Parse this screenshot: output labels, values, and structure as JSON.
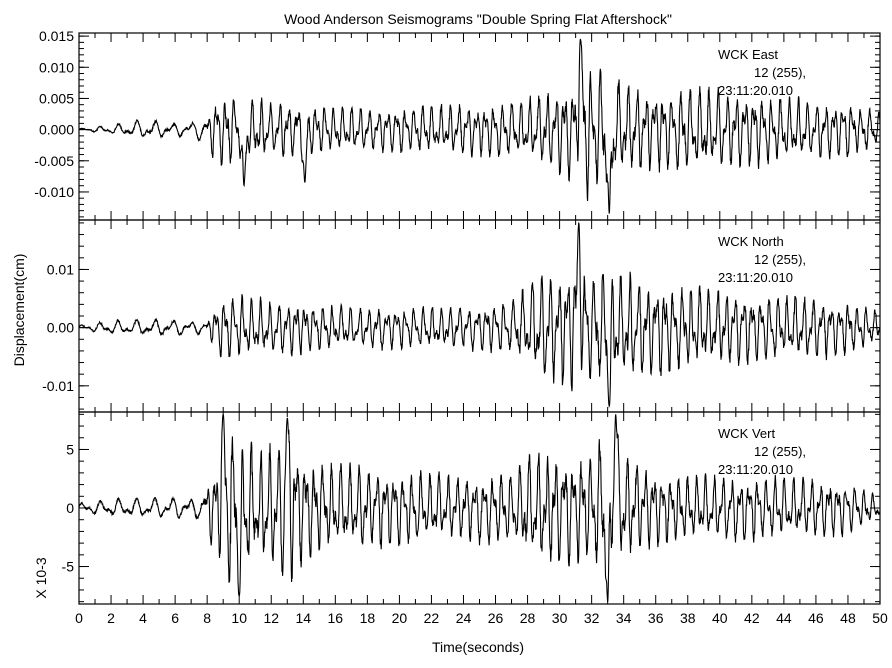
{
  "chart_data": {
    "type": "line",
    "title": "Wood Anderson Seismograms \"Double Spring Flat Aftershock\"",
    "xlabel": "Time(seconds)",
    "ylabel": "Displacement(cm)",
    "xlim": [
      0,
      50
    ],
    "x_ticks": [
      "0",
      "2",
      "4",
      "6",
      "8",
      "10",
      "12",
      "14",
      "16",
      "18",
      "20",
      "22",
      "24",
      "26",
      "28",
      "30",
      "32",
      "34",
      "36",
      "38",
      "40",
      "42",
      "44",
      "46",
      "48",
      "50"
    ],
    "grid": false,
    "panels": [
      {
        "name": "east",
        "ylim": [
          -0.0145,
          0.0155
        ],
        "y_ticks": [
          0.015,
          0.01,
          0.005,
          0.0,
          -0.005,
          -0.01
        ],
        "y_tick_labels": [
          "0.015",
          "0.010",
          "0.005",
          "0.000",
          "-0.005",
          "-0.010"
        ],
        "annotation": [
          "WCK   East",
          "12 (255),",
          "23:11:20.010"
        ],
        "envelope": {
          "t": [
            0,
            2,
            3,
            4,
            5,
            6,
            7,
            8,
            8.5,
            9,
            10,
            12,
            14,
            16,
            20,
            24,
            27,
            29,
            30,
            31,
            31.5,
            32,
            33,
            34,
            36,
            38,
            40,
            42,
            44,
            46,
            48,
            50
          ],
          "amp": [
            0.0002,
            0.0008,
            0.0012,
            0.0018,
            0.0015,
            0.0012,
            0.0015,
            0.0022,
            0.006,
            0.0065,
            0.006,
            0.005,
            0.005,
            0.004,
            0.004,
            0.0045,
            0.005,
            0.006,
            0.008,
            0.009,
            0.015,
            0.0105,
            0.011,
            0.008,
            0.007,
            0.0075,
            0.007,
            0.0065,
            0.006,
            0.005,
            0.005,
            0.003
          ]
        },
        "peaks": [
          {
            "t": 31.3,
            "v": 0.0145
          },
          {
            "t": 33.1,
            "v": -0.0135
          },
          {
            "t": 10.3,
            "v": -0.009
          },
          {
            "t": 14.1,
            "v": -0.0085
          }
        ]
      },
      {
        "name": "north",
        "ylim": [
          -0.0145,
          0.0185
        ],
        "y_ticks": [
          0.01,
          0.0,
          -0.01
        ],
        "y_tick_labels": [
          "0.01",
          "0.00",
          "-0.01"
        ],
        "annotation": [
          "WCK   North",
          "12 (255),",
          "23:11:20.010"
        ],
        "envelope": {
          "t": [
            0,
            2,
            4,
            6,
            8,
            8.5,
            9,
            10,
            12,
            14,
            16,
            20,
            24,
            27,
            28.5,
            30,
            31,
            32,
            33,
            34,
            36,
            38,
            40,
            42,
            44,
            46,
            48,
            50
          ],
          "amp": [
            0.0005,
            0.0013,
            0.0016,
            0.0015,
            0.0012,
            0.004,
            0.006,
            0.006,
            0.005,
            0.005,
            0.004,
            0.004,
            0.004,
            0.005,
            0.01,
            0.011,
            0.013,
            0.01,
            0.012,
            0.01,
            0.009,
            0.008,
            0.007,
            0.007,
            0.006,
            0.006,
            0.005,
            0.003
          ]
        },
        "peaks": [
          {
            "t": 31.2,
            "v": 0.018
          },
          {
            "t": 33.1,
            "v": -0.0135
          }
        ]
      },
      {
        "name": "vert",
        "ylim": [
          -8.2,
          8.2
        ],
        "y_ticks": [
          5,
          0,
          -5
        ],
        "y_tick_labels": [
          "5",
          "0",
          "-5"
        ],
        "y_multiplier_label": "X 10-3",
        "annotation": [
          "WCK   Vert",
          "12 (255),",
          "23:11:20.010"
        ],
        "envelope": {
          "t": [
            0,
            2,
            4,
            6,
            7.5,
            8.5,
            9,
            10,
            11,
            12,
            13,
            14,
            16,
            20,
            24,
            27,
            28,
            30,
            31,
            32,
            33,
            34,
            36,
            38,
            40,
            42,
            44,
            46,
            48,
            50
          ],
          "amp": [
            0.5,
            0.8,
            1.0,
            1.0,
            1.0,
            4.0,
            7.0,
            7.5,
            5.0,
            6.0,
            7.5,
            5.0,
            4.0,
            3.5,
            3.0,
            3.5,
            5.0,
            5.5,
            5.5,
            5.0,
            7.5,
            5.0,
            3.5,
            3.0,
            3.0,
            3.0,
            3.0,
            2.8,
            2.5,
            1.0
          ]
        },
        "peaks": [
          {
            "t": 9.0,
            "v": 8.0
          },
          {
            "t": 10.0,
            "v": -7.5
          },
          {
            "t": 13.0,
            "v": 7.7
          },
          {
            "t": 33.0,
            "v": -8.0
          },
          {
            "t": 33.5,
            "v": 8.0
          }
        ]
      }
    ]
  }
}
